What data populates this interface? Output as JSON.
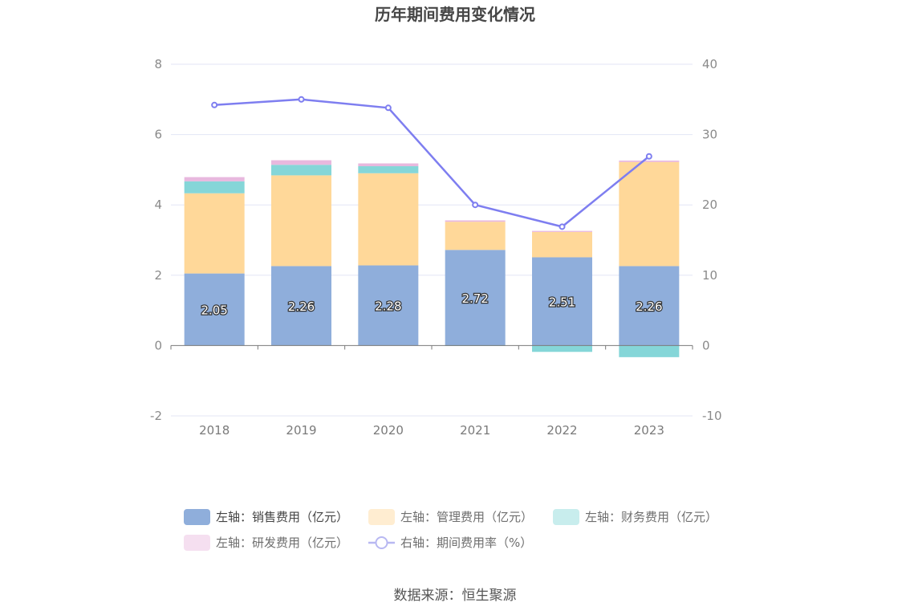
{
  "chart_data": {
    "type": "bar",
    "title": "历年期间费用变化情况",
    "categories": [
      "2018",
      "2019",
      "2020",
      "2021",
      "2022",
      "2023"
    ],
    "series": [
      {
        "name": "左轴：销售费用（亿元）",
        "kind": "bar",
        "axis": "left",
        "color": "#8faedb",
        "values": [
          2.05,
          2.26,
          2.28,
          2.72,
          2.51,
          2.26
        ],
        "show_labels": true
      },
      {
        "name": "左轴：管理费用（亿元）",
        "kind": "bar",
        "axis": "left",
        "color": "#ffd899",
        "values": [
          2.28,
          2.58,
          2.62,
          0.8,
          0.72,
          2.96
        ]
      },
      {
        "name": "左轴：财务费用（亿元）",
        "kind": "bar",
        "axis": "left",
        "color": "#85d6d8",
        "values": [
          0.34,
          0.3,
          0.2,
          -0.01,
          -0.18,
          -0.33
        ]
      },
      {
        "name": "左轴：研发费用（亿元）",
        "kind": "bar",
        "axis": "left",
        "color": "#e8b8de",
        "values": [
          0.12,
          0.13,
          0.08,
          0.04,
          0.03,
          0.04
        ]
      },
      {
        "name": "右轴：期间费用率（%）",
        "kind": "line",
        "axis": "right",
        "color": "#7e7ef0",
        "values": [
          34.2,
          35.0,
          33.8,
          20.0,
          16.9,
          26.9
        ]
      }
    ],
    "y_left": {
      "min": -2,
      "max": 8,
      "ticks": [
        -2,
        0,
        2,
        4,
        6,
        8
      ]
    },
    "y_right": {
      "min": -10,
      "max": 40,
      "ticks": [
        -10,
        0,
        10,
        20,
        30,
        40
      ]
    },
    "grid": true,
    "legend_position": "bottom",
    "stacked": true
  },
  "footer": {
    "source": "数据来源：恒生聚源"
  }
}
